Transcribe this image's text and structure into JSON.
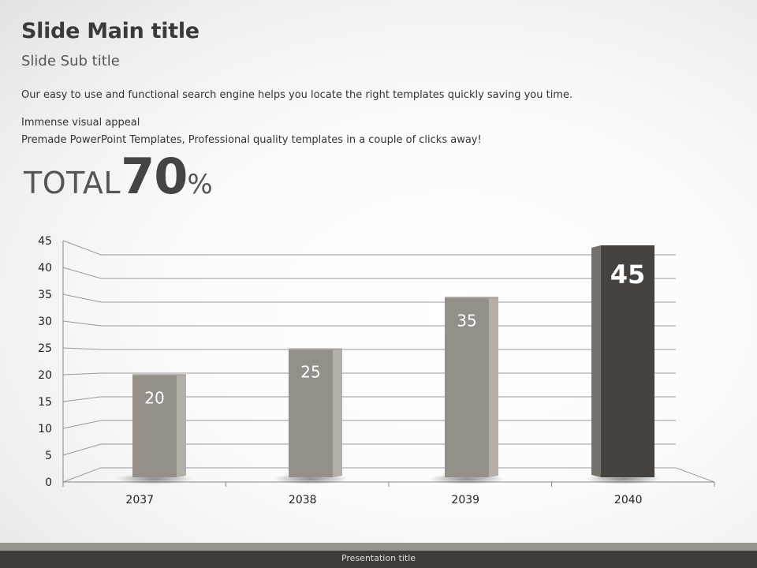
{
  "slide": {
    "title": "Slide Main title",
    "subtitle": "Slide Sub title",
    "paragraph": "Our easy to use and functional search engine helps you locate the right templates quickly saving you time.",
    "line1": "Immense visual appeal",
    "line2": "Premade PowerPoint Templates, Professional quality templates in a couple of clicks away!",
    "total": {
      "word": "TOTAL",
      "value": "70",
      "unit": "%"
    },
    "footer": "Presentation title"
  },
  "chart_data": {
    "type": "bar",
    "categories": [
      "2037",
      "2038",
      "2039",
      "2040"
    ],
    "values": [
      20,
      25,
      35,
      45
    ],
    "data_labels": [
      "20",
      "25",
      "35",
      "45"
    ],
    "ylim": [
      0,
      45
    ],
    "yticks": [
      0,
      5,
      10,
      15,
      20,
      25,
      30,
      35,
      40,
      45
    ],
    "grid": true,
    "legend": "none",
    "highlight_index": 3,
    "colors": {
      "bar": "#948f88",
      "bar_side": "#b3aea7",
      "highlight": "#46423f",
      "highlight_side": "#77716b"
    }
  }
}
